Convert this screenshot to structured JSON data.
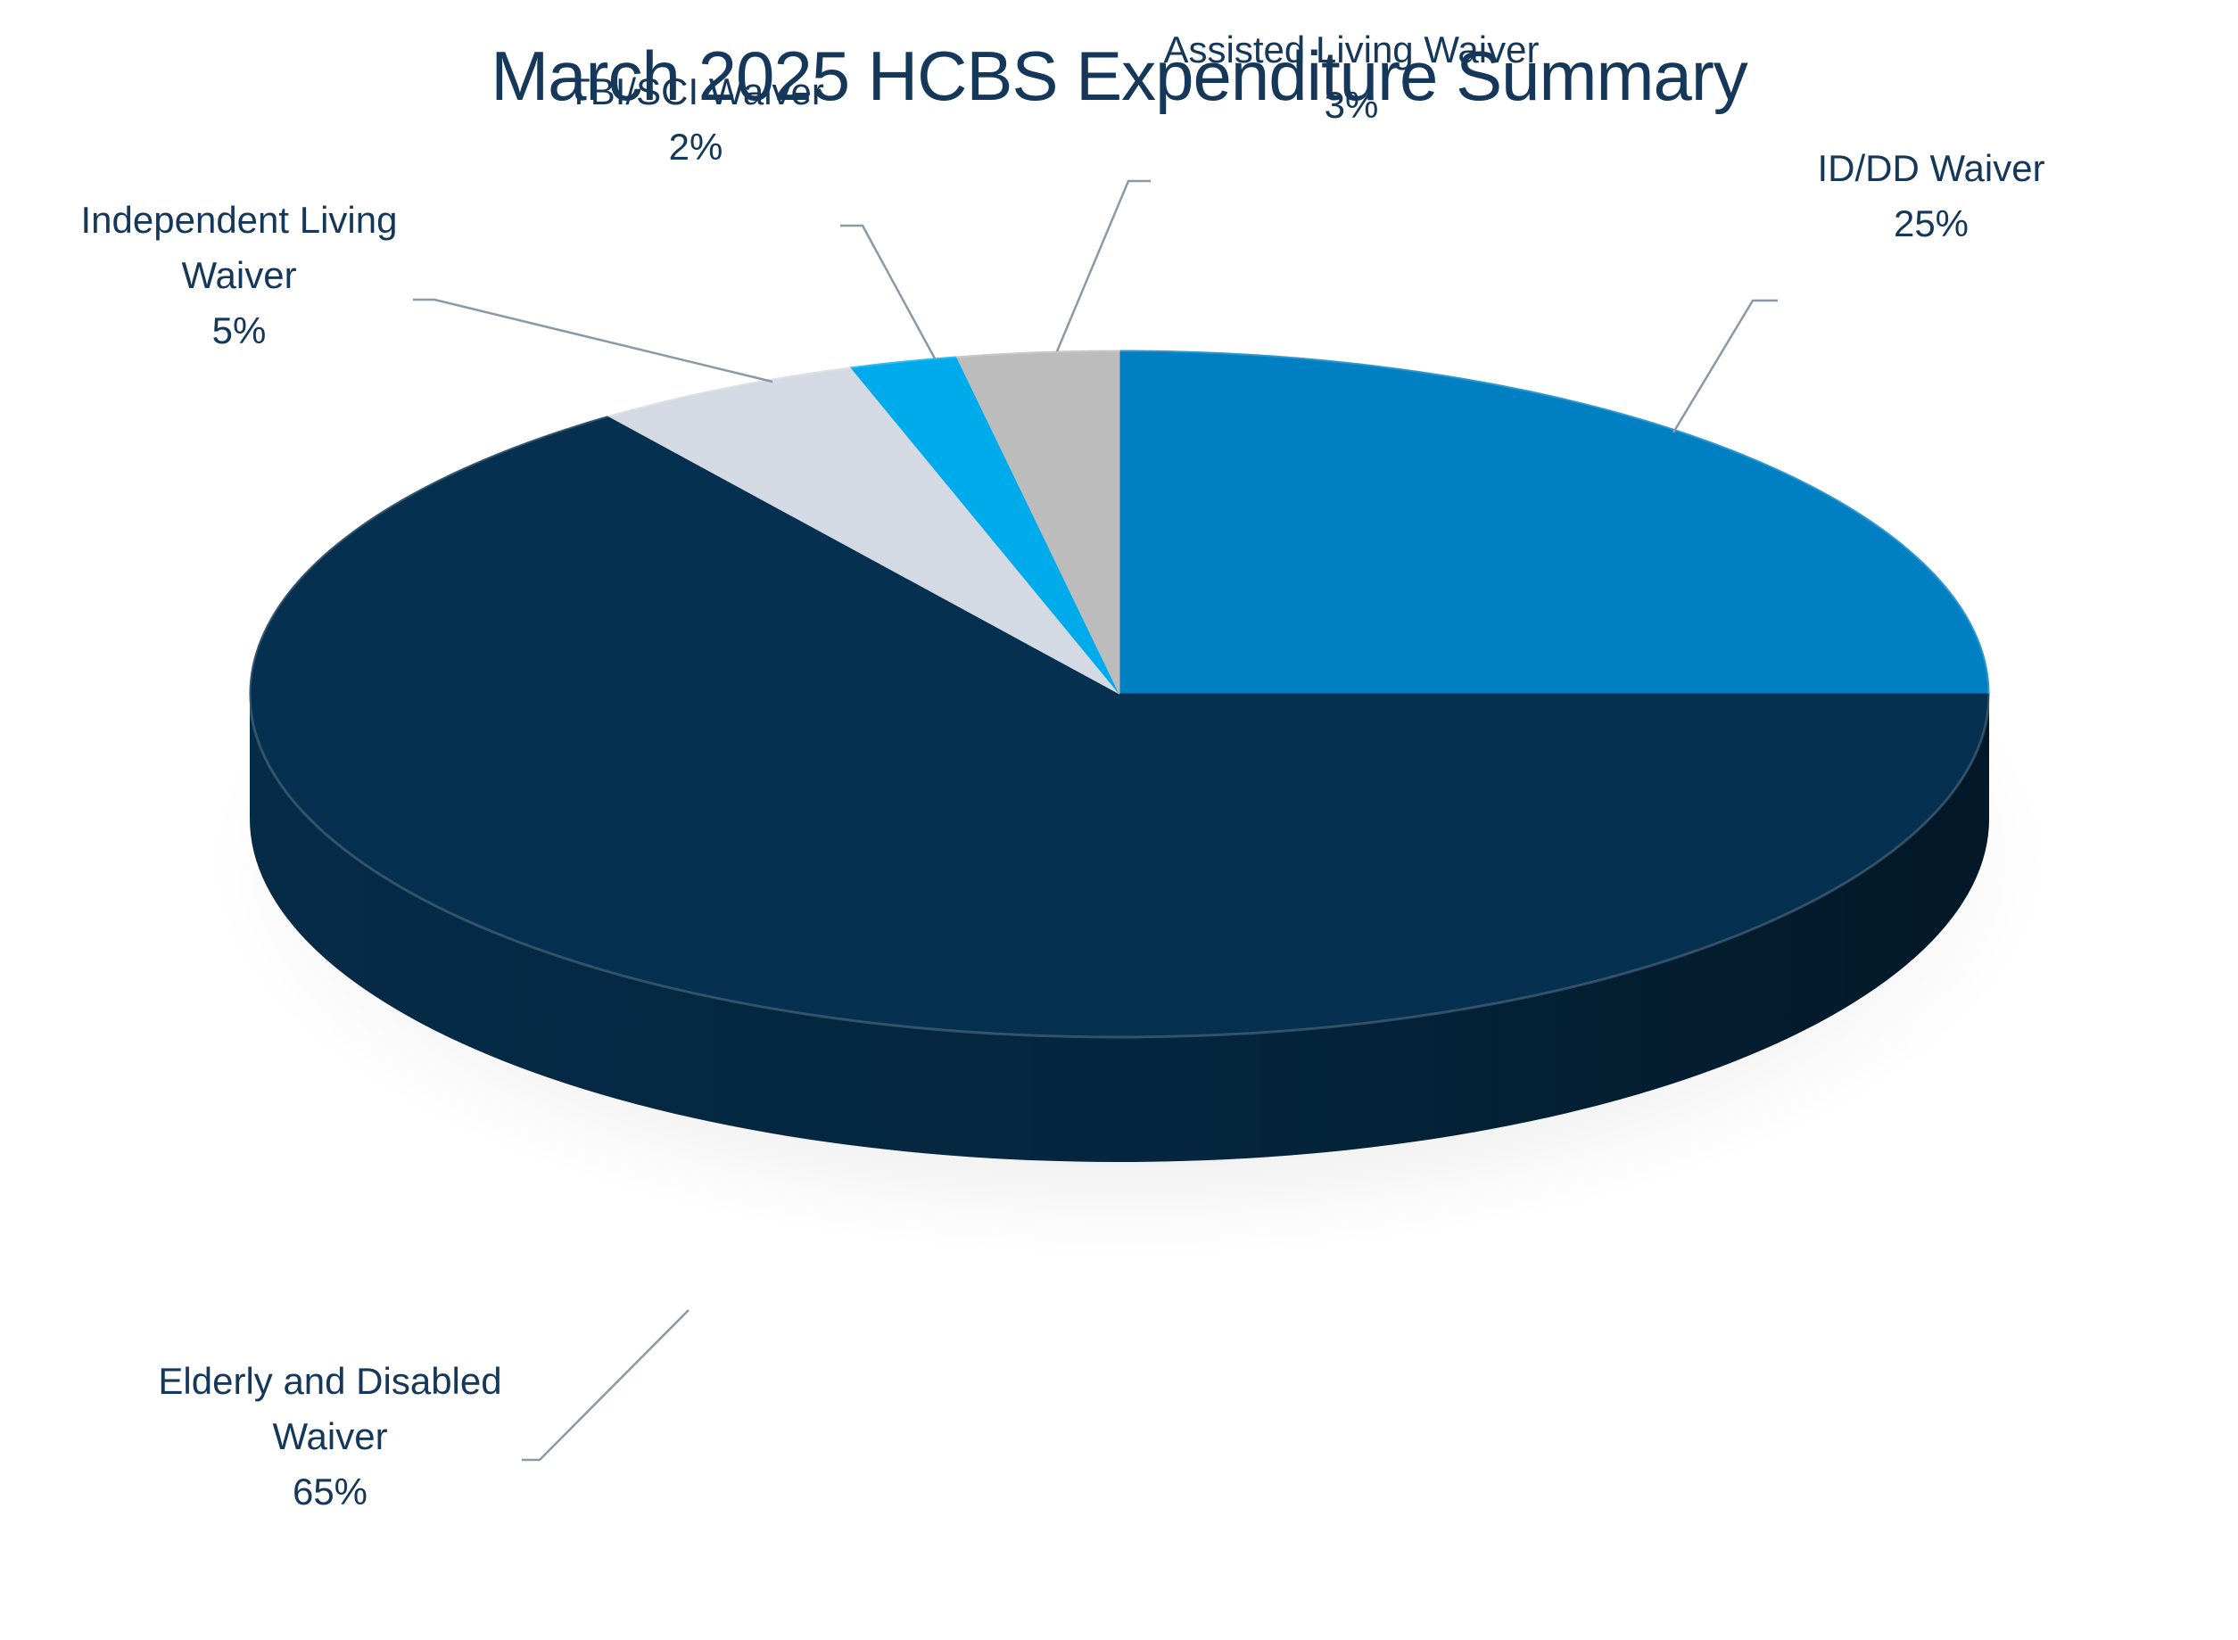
{
  "chart_data": {
    "type": "pie",
    "title": "March 2025 HCBS Expenditure Summary",
    "slices": [
      {
        "label_lines": [
          "ID/DD Waiver"
        ],
        "value": 25,
        "value_label": "25%",
        "color": "#0080c2"
      },
      {
        "label_lines": [
          "Elderly and Disabled",
          "Waiver"
        ],
        "value": 65,
        "value_label": "65%",
        "color": "#06304f"
      },
      {
        "label_lines": [
          "Independent Living",
          "Waiver"
        ],
        "value": 5,
        "value_label": "5%",
        "color": "#d3dae3"
      },
      {
        "label_lines": [
          "TBI/SCI Waiver"
        ],
        "value": 2,
        "value_label": "2%",
        "color": "#00abec"
      },
      {
        "label_lines": [
          "Assisted Living Waiver"
        ],
        "value": 3,
        "value_label": "3%",
        "color": "#bcbcbc"
      }
    ],
    "start_angle_deg": 0,
    "direction": "clockwise",
    "style": "3d",
    "legend": "none",
    "data_labels": "outside-with-leader-lines"
  }
}
